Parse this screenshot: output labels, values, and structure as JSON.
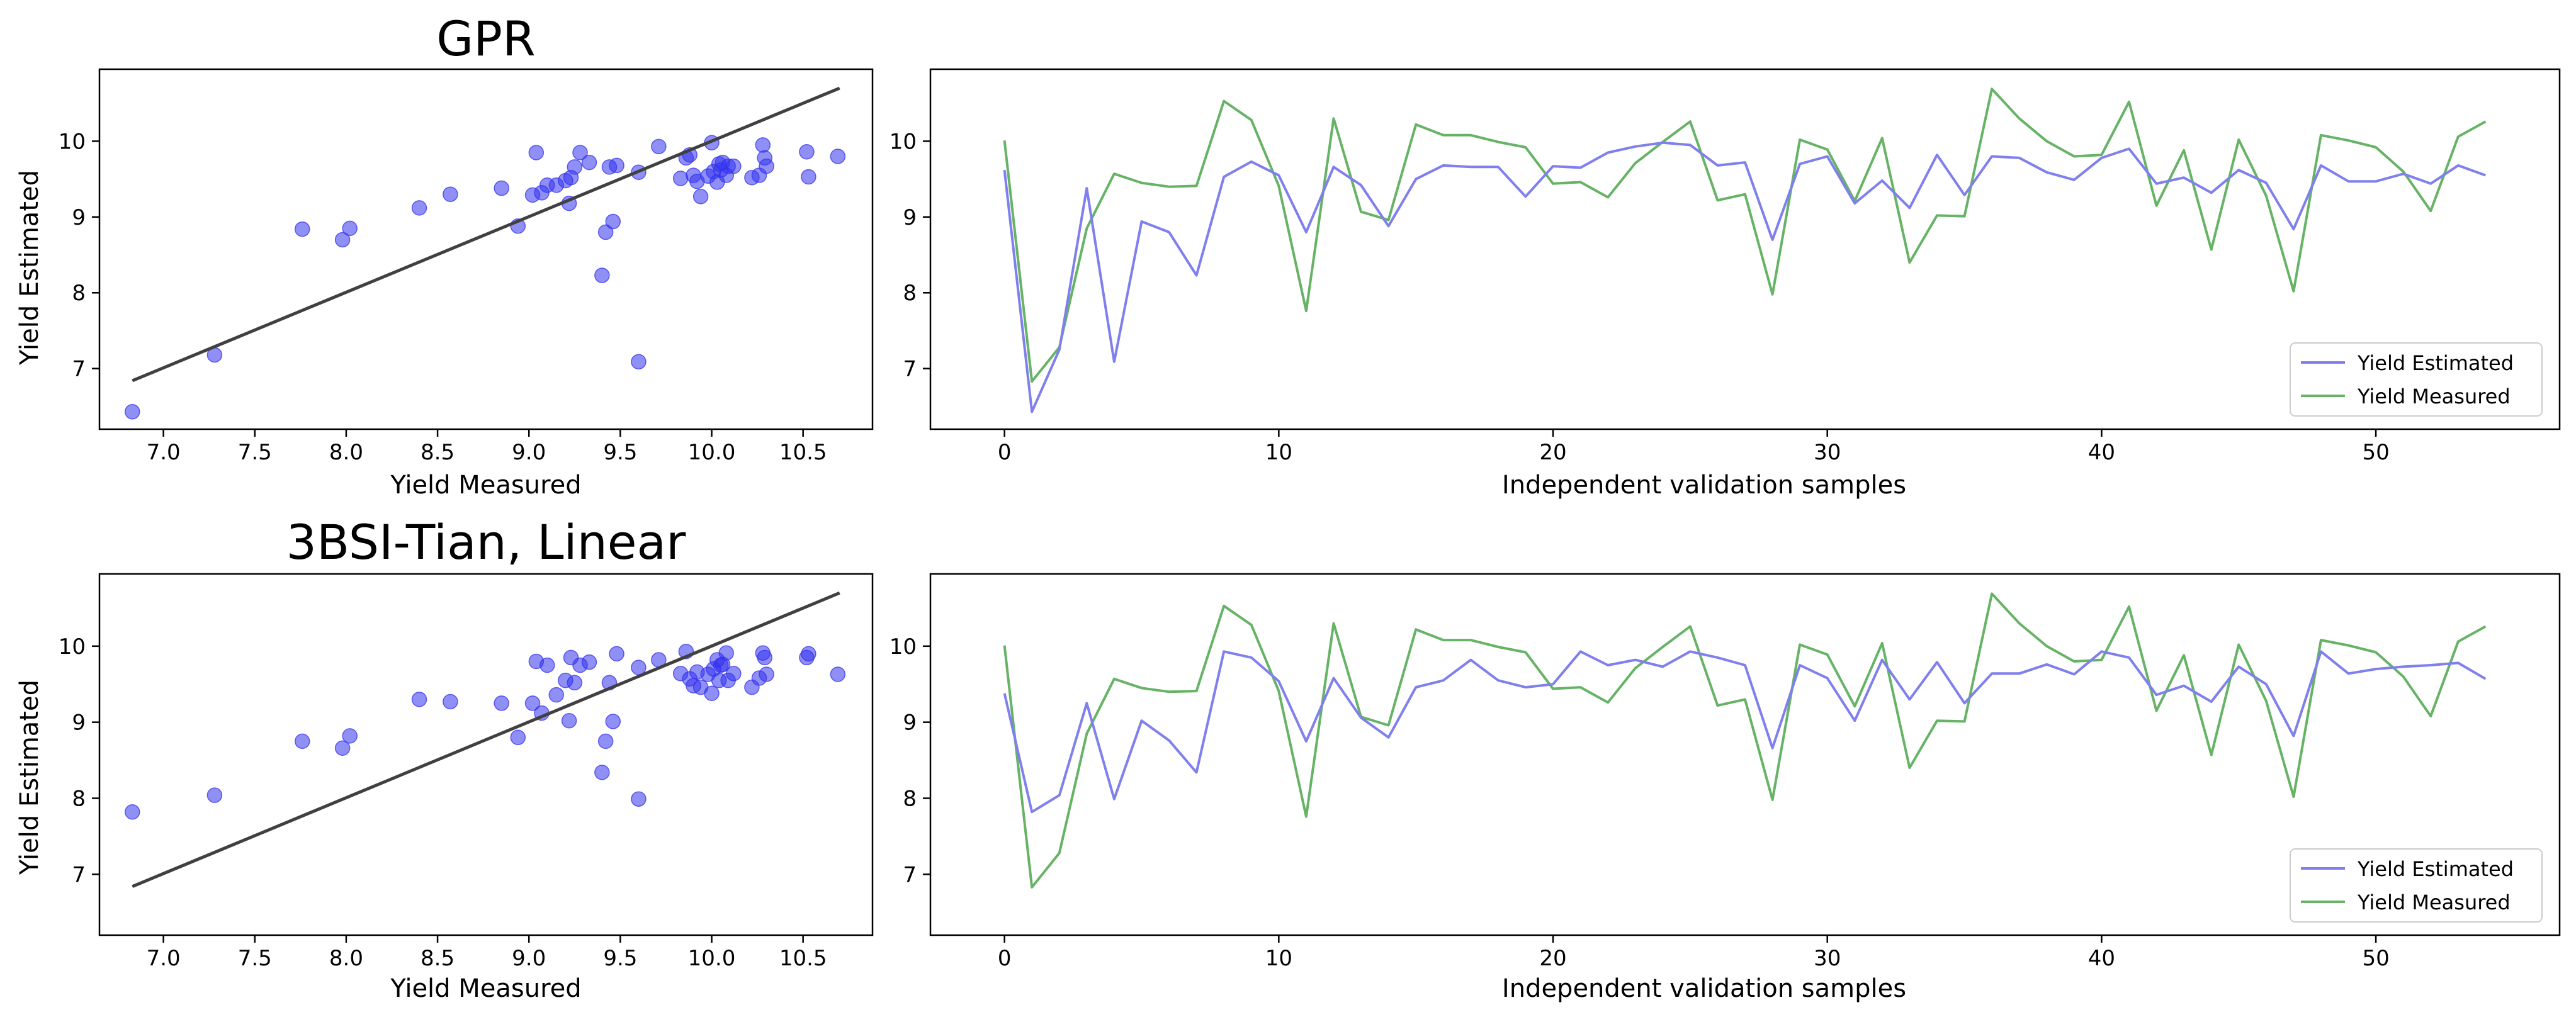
{
  "chart_data": [
    {
      "id": "gpr-scatter",
      "type": "scatter",
      "title": "GPR",
      "xlabel": "Yield Measured",
      "ylabel": "Yield Estimated",
      "xlim": [
        6.65,
        10.88
      ],
      "ylim": [
        6.2,
        10.95
      ],
      "xticks": [
        7.0,
        7.5,
        8.0,
        8.5,
        9.0,
        9.5,
        10.0,
        10.5
      ],
      "xtick_labels": [
        "7.0",
        "7.5",
        "8.0",
        "8.5",
        "9.0",
        "9.5",
        "10.0",
        "10.5"
      ],
      "yticks": [
        7,
        8,
        9,
        10
      ],
      "ytick_labels": [
        "7",
        "8",
        "9",
        "10"
      ],
      "color": "#3333ee",
      "line_color": "#404040",
      "fit_line": [
        [
          6.83,
          6.84
        ],
        [
          10.7,
          10.7
        ]
      ],
      "x": [
        6.83,
        7.28,
        7.76,
        7.98,
        8.02,
        8.4,
        8.57,
        8.85,
        8.94,
        9.02,
        9.04,
        9.07,
        9.1,
        9.15,
        9.2,
        9.22,
        9.23,
        9.25,
        9.28,
        9.33,
        9.4,
        9.42,
        9.44,
        9.46,
        9.48,
        9.6,
        9.6,
        9.71,
        9.83,
        9.86,
        9.88,
        9.9,
        9.92,
        9.94,
        9.98,
        10.0,
        10.01,
        10.03,
        10.04,
        10.05,
        10.06,
        10.08,
        10.09,
        10.12,
        10.22,
        10.26,
        10.28,
        10.29,
        10.3,
        10.52,
        10.53,
        10.69
      ],
      "y": [
        6.43,
        7.18,
        8.84,
        8.7,
        8.85,
        9.12,
        9.3,
        9.38,
        8.88,
        9.29,
        9.85,
        9.32,
        9.42,
        9.42,
        9.48,
        9.18,
        9.52,
        9.66,
        9.85,
        9.72,
        8.23,
        8.8,
        9.66,
        8.94,
        9.68,
        7.09,
        9.59,
        9.93,
        9.51,
        9.78,
        9.82,
        9.55,
        9.47,
        9.27,
        9.54,
        9.98,
        9.6,
        9.46,
        9.7,
        9.62,
        9.72,
        9.55,
        9.67,
        9.67,
        9.52,
        9.55,
        9.95,
        9.78,
        9.67,
        9.86,
        9.53,
        9.8
      ]
    },
    {
      "id": "gpr-series",
      "type": "line",
      "xlabel": "Independent validation samples",
      "xlim": [
        -2.7,
        56.7
      ],
      "ylim": [
        6.2,
        10.95
      ],
      "xticks": [
        0,
        10,
        20,
        30,
        40,
        50
      ],
      "xtick_labels": [
        "0",
        "10",
        "20",
        "30",
        "40",
        "50"
      ],
      "yticks": [
        7,
        8,
        9,
        10
      ],
      "ytick_labels": [
        "7",
        "8",
        "9",
        "10"
      ],
      "legend_position": "bottom-right",
      "series": [
        {
          "name": "Yield Estimated",
          "color": "#7f7fee",
          "values": [
            9.62,
            6.43,
            7.25,
            9.38,
            7.09,
            8.94,
            8.8,
            8.23,
            9.53,
            9.73,
            9.55,
            8.8,
            9.66,
            9.42,
            8.88,
            9.5,
            9.68,
            9.66,
            9.66,
            9.27,
            9.67,
            9.65,
            9.85,
            9.93,
            9.98,
            9.95,
            9.68,
            9.72,
            8.7,
            9.7,
            9.8,
            9.18,
            9.48,
            9.12,
            9.82,
            9.29,
            9.8,
            9.78,
            9.59,
            9.49,
            9.78,
            9.9,
            9.44,
            9.52,
            9.32,
            9.62,
            9.45,
            8.84,
            9.68,
            9.47,
            9.47,
            9.57,
            9.44,
            9.68,
            9.55
          ]
        },
        {
          "name": "Yield Measured",
          "color": "#66b366",
          "values": [
            10.01,
            6.83,
            7.28,
            8.85,
            9.57,
            9.45,
            9.4,
            9.41,
            10.53,
            10.28,
            9.41,
            7.76,
            10.3,
            9.07,
            8.96,
            10.22,
            10.08,
            10.08,
            9.99,
            9.92,
            9.44,
            9.46,
            9.26,
            9.71,
            9.99,
            10.26,
            9.22,
            9.3,
            7.98,
            10.02,
            9.89,
            9.21,
            10.04,
            8.4,
            9.02,
            9.01,
            10.69,
            10.3,
            10.0,
            9.8,
            9.82,
            10.52,
            9.15,
            9.88,
            8.57,
            10.02,
            9.28,
            8.02,
            10.08,
            10.01,
            9.92,
            9.6,
            9.08,
            10.06,
            10.26
          ]
        }
      ]
    },
    {
      "id": "tian-scatter",
      "type": "scatter",
      "title": "3BSI-Tian, Linear",
      "xlabel": "Yield Measured",
      "ylabel": "Yield Estimated",
      "xlim": [
        6.65,
        10.88
      ],
      "ylim": [
        6.2,
        10.95
      ],
      "xticks": [
        7.0,
        7.5,
        8.0,
        8.5,
        9.0,
        9.5,
        10.0,
        10.5
      ],
      "xtick_labels": [
        "7.0",
        "7.5",
        "8.0",
        "8.5",
        "9.0",
        "9.5",
        "10.0",
        "10.5"
      ],
      "yticks": [
        7,
        8,
        9,
        10
      ],
      "ytick_labels": [
        "7",
        "8",
        "9",
        "10"
      ],
      "color": "#3333ee",
      "line_color": "#404040",
      "fit_line": [
        [
          6.83,
          6.84
        ],
        [
          10.7,
          10.7
        ]
      ],
      "x": [
        6.83,
        7.28,
        7.76,
        7.98,
        8.02,
        8.4,
        8.57,
        8.85,
        8.94,
        9.02,
        9.04,
        9.07,
        9.1,
        9.15,
        9.2,
        9.22,
        9.23,
        9.25,
        9.28,
        9.33,
        9.4,
        9.42,
        9.44,
        9.46,
        9.48,
        9.6,
        9.6,
        9.71,
        9.83,
        9.86,
        9.88,
        9.9,
        9.92,
        9.94,
        9.98,
        10.0,
        10.01,
        10.03,
        10.04,
        10.05,
        10.06,
        10.08,
        10.09,
        10.12,
        10.22,
        10.26,
        10.28,
        10.29,
        10.3,
        10.52,
        10.53,
        10.69
      ],
      "y": [
        7.82,
        8.04,
        8.75,
        8.66,
        8.82,
        9.3,
        9.27,
        9.25,
        8.8,
        9.25,
        9.8,
        9.12,
        9.75,
        9.36,
        9.55,
        9.02,
        9.85,
        9.52,
        9.75,
        9.79,
        8.34,
        8.75,
        9.52,
        9.01,
        9.9,
        7.99,
        9.72,
        9.82,
        9.64,
        9.93,
        9.57,
        9.48,
        9.66,
        9.46,
        9.63,
        9.38,
        9.7,
        9.82,
        9.55,
        9.75,
        9.76,
        9.91,
        9.55,
        9.64,
        9.46,
        9.58,
        9.91,
        9.85,
        9.63,
        9.85,
        9.9,
        9.63
      ]
    },
    {
      "id": "tian-series",
      "type": "line",
      "xlabel": "Independent validation samples",
      "xlim": [
        -2.7,
        56.7
      ],
      "ylim": [
        6.2,
        10.95
      ],
      "xticks": [
        0,
        10,
        20,
        30,
        40,
        50
      ],
      "xtick_labels": [
        "0",
        "10",
        "20",
        "30",
        "40",
        "50"
      ],
      "yticks": [
        7,
        8,
        9,
        10
      ],
      "ytick_labels": [
        "7",
        "8",
        "9",
        "10"
      ],
      "legend_position": "bottom-right",
      "series": [
        {
          "name": "Yield Estimated",
          "color": "#7f7fee",
          "values": [
            9.38,
            7.82,
            8.04,
            9.25,
            7.99,
            9.02,
            8.76,
            8.34,
            9.93,
            9.85,
            9.54,
            8.75,
            9.58,
            9.06,
            8.8,
            9.46,
            9.55,
            9.82,
            9.55,
            9.46,
            9.5,
            9.93,
            9.75,
            9.82,
            9.73,
            9.93,
            9.85,
            9.75,
            8.66,
            9.75,
            9.58,
            9.02,
            9.82,
            9.3,
            9.79,
            9.25,
            9.64,
            9.64,
            9.76,
            9.63,
            9.93,
            9.85,
            9.36,
            9.48,
            9.27,
            9.73,
            9.5,
            8.82,
            9.93,
            9.64,
            9.7,
            9.73,
            9.75,
            9.78,
            9.57
          ]
        },
        {
          "name": "Yield Measured",
          "color": "#66b366",
          "values": [
            10.01,
            6.83,
            7.28,
            8.85,
            9.57,
            9.45,
            9.4,
            9.41,
            10.53,
            10.28,
            9.41,
            7.76,
            10.3,
            9.07,
            8.96,
            10.22,
            10.08,
            10.08,
            9.99,
            9.92,
            9.44,
            9.46,
            9.26,
            9.71,
            9.99,
            10.26,
            9.22,
            9.3,
            7.98,
            10.02,
            9.89,
            9.21,
            10.04,
            8.4,
            9.02,
            9.01,
            10.69,
            10.3,
            10.0,
            9.8,
            9.82,
            10.52,
            9.15,
            9.88,
            8.57,
            10.02,
            9.28,
            8.02,
            10.08,
            10.01,
            9.92,
            9.6,
            9.08,
            10.06,
            10.26
          ]
        }
      ]
    }
  ]
}
